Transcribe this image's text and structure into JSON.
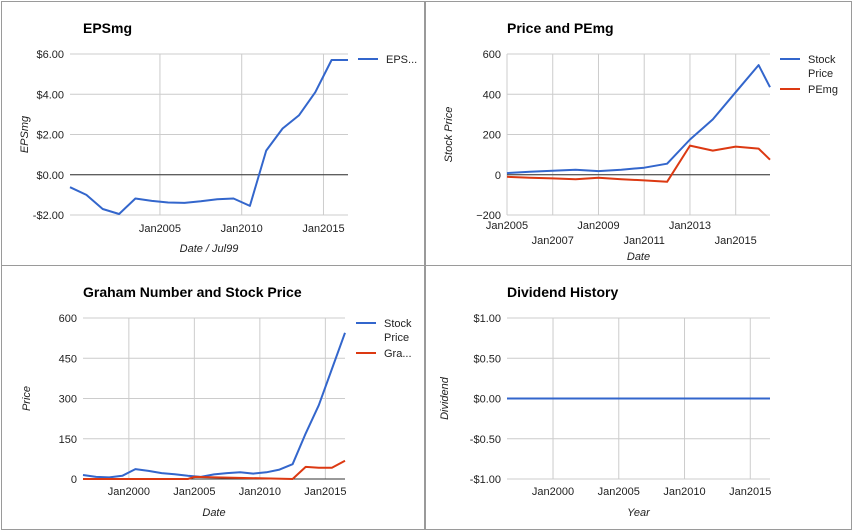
{
  "chart_data": [
    {
      "type": "line",
      "title": "EPSmg",
      "xlabel": "Date / Jul99",
      "ylabel": "EPSmg",
      "xlim": [
        1999.5,
        2016.5
      ],
      "ylim": [
        -2,
        6
      ],
      "y_ticks": [
        {
          "value": 6,
          "label": "$6.00"
        },
        {
          "value": 4,
          "label": "$4.00"
        },
        {
          "value": 2,
          "label": "$2.00"
        },
        {
          "value": 0,
          "label": "$0.00"
        },
        {
          "value": -2,
          "label": "-$2.00"
        }
      ],
      "x_ticks": [
        {
          "value": 2005,
          "label": "Jan2005"
        },
        {
          "value": 2010,
          "label": "Jan2010"
        },
        {
          "value": 2015,
          "label": "Jan2015"
        }
      ],
      "baseline": 0,
      "legend_position": "right",
      "series": [
        {
          "name": "EPS...",
          "color": "#3366cc",
          "x": [
            1999.5,
            2000.5,
            2001.5,
            2002.5,
            2003.5,
            2004.5,
            2005.5,
            2006.5,
            2007.5,
            2008.5,
            2009.5,
            2010.5,
            2011.5,
            2012.5,
            2013.5,
            2014.5,
            2015.5,
            2016.5
          ],
          "y": [
            -0.62,
            -1.0,
            -1.7,
            -1.95,
            -1.18,
            -1.3,
            -1.38,
            -1.4,
            -1.32,
            -1.22,
            -1.18,
            -1.55,
            1.2,
            2.3,
            2.95,
            4.1,
            5.7,
            5.7
          ]
        }
      ]
    },
    {
      "type": "line",
      "title": "Price and PEmg",
      "xlabel": "Date",
      "ylabel": "Stock Price",
      "xlim": [
        2005,
        2016.5
      ],
      "ylim": [
        -200,
        600
      ],
      "y_ticks": [
        {
          "value": 600,
          "label": "600"
        },
        {
          "value": 400,
          "label": "400"
        },
        {
          "value": 200,
          "label": "200"
        },
        {
          "value": 0,
          "label": "0"
        },
        {
          "value": -200,
          "label": "−200"
        }
      ],
      "x_ticks": [
        {
          "value": 2005,
          "label": "Jan2005",
          "row": 1
        },
        {
          "value": 2007,
          "label": "Jan2007",
          "row": 2
        },
        {
          "value": 2009,
          "label": "Jan2009",
          "row": 1
        },
        {
          "value": 2011,
          "label": "Jan2011",
          "row": 2
        },
        {
          "value": 2013,
          "label": "Jan2013",
          "row": 1
        },
        {
          "value": 2015,
          "label": "Jan2015",
          "row": 2
        }
      ],
      "baseline": 0,
      "legend_position": "right",
      "series": [
        {
          "name": "Stock Price",
          "color": "#3366cc",
          "x": [
            2005,
            2006,
            2007,
            2008,
            2009,
            2010,
            2011,
            2012,
            2013,
            2014,
            2015,
            2016,
            2016.5
          ],
          "y": [
            8,
            15,
            20,
            25,
            18,
            25,
            35,
            55,
            175,
            275,
            410,
            545,
            435
          ]
        },
        {
          "name": "PEmg",
          "color": "#dc3912",
          "x": [
            2005,
            2006,
            2007,
            2008,
            2009,
            2010,
            2011,
            2012,
            2013,
            2014,
            2015,
            2016,
            2016.5
          ],
          "y": [
            -10,
            -15,
            -18,
            -22,
            -15,
            -22,
            -28,
            -35,
            145,
            120,
            140,
            130,
            75
          ]
        }
      ]
    },
    {
      "type": "line",
      "title": "Graham Number and Stock Price",
      "xlabel": "Date",
      "ylabel": "Price",
      "xlim": [
        1996.5,
        2016.5
      ],
      "ylim": [
        0,
        600
      ],
      "y_ticks": [
        {
          "value": 600,
          "label": "600"
        },
        {
          "value": 450,
          "label": "450"
        },
        {
          "value": 300,
          "label": "300"
        },
        {
          "value": 150,
          "label": "150"
        },
        {
          "value": 0,
          "label": "0"
        }
      ],
      "x_ticks": [
        {
          "value": 2000,
          "label": "Jan2000"
        },
        {
          "value": 2005,
          "label": "Jan2005"
        },
        {
          "value": 2010,
          "label": "Jan2010"
        },
        {
          "value": 2015,
          "label": "Jan2015"
        }
      ],
      "baseline": 0,
      "legend_position": "right",
      "series": [
        {
          "name": "Stock Price",
          "color": "#3366cc",
          "x": [
            1996.5,
            1997.5,
            1998.5,
            1999.5,
            2000.5,
            2001.5,
            2002.5,
            2003.5,
            2004.5,
            2005.5,
            2006.5,
            2007.5,
            2008.5,
            2009.5,
            2010.5,
            2011.5,
            2012.5,
            2013.5,
            2014.5,
            2015.5,
            2016.5
          ],
          "y": [
            15,
            8,
            6,
            12,
            37,
            30,
            22,
            18,
            12,
            8,
            17,
            22,
            25,
            20,
            25,
            35,
            55,
            170,
            275,
            410,
            545
          ]
        },
        {
          "name": "Gra...",
          "color": "#dc3912",
          "x": [
            1996.5,
            2004.5,
            2005.0,
            2012.5,
            2013.5,
            2014.5,
            2015.5,
            2016.5
          ],
          "y": [
            0,
            0,
            8,
            0,
            45,
            42,
            42,
            68
          ]
        }
      ]
    },
    {
      "type": "line",
      "title": "Dividend History",
      "xlabel": "Year",
      "ylabel": "Dividend",
      "xlim": [
        1996.5,
        2016.5
      ],
      "ylim": [
        -1,
        1
      ],
      "y_ticks": [
        {
          "value": 1,
          "label": "$1.00"
        },
        {
          "value": 0.5,
          "label": "$0.50"
        },
        {
          "value": 0,
          "label": "$0.00"
        },
        {
          "value": -0.5,
          "label": "-$0.50"
        },
        {
          "value": -1,
          "label": "-$1.00"
        }
      ],
      "x_ticks": [
        {
          "value": 2000,
          "label": "Jan2000"
        },
        {
          "value": 2005,
          "label": "Jan2005"
        },
        {
          "value": 2010,
          "label": "Jan2010"
        },
        {
          "value": 2015,
          "label": "Jan2015"
        }
      ],
      "baseline": null,
      "legend_position": "none",
      "series": [
        {
          "name": "",
          "color": "#3366cc",
          "x": [
            1996.5,
            2016.5
          ],
          "y": [
            0,
            0
          ]
        }
      ]
    }
  ]
}
